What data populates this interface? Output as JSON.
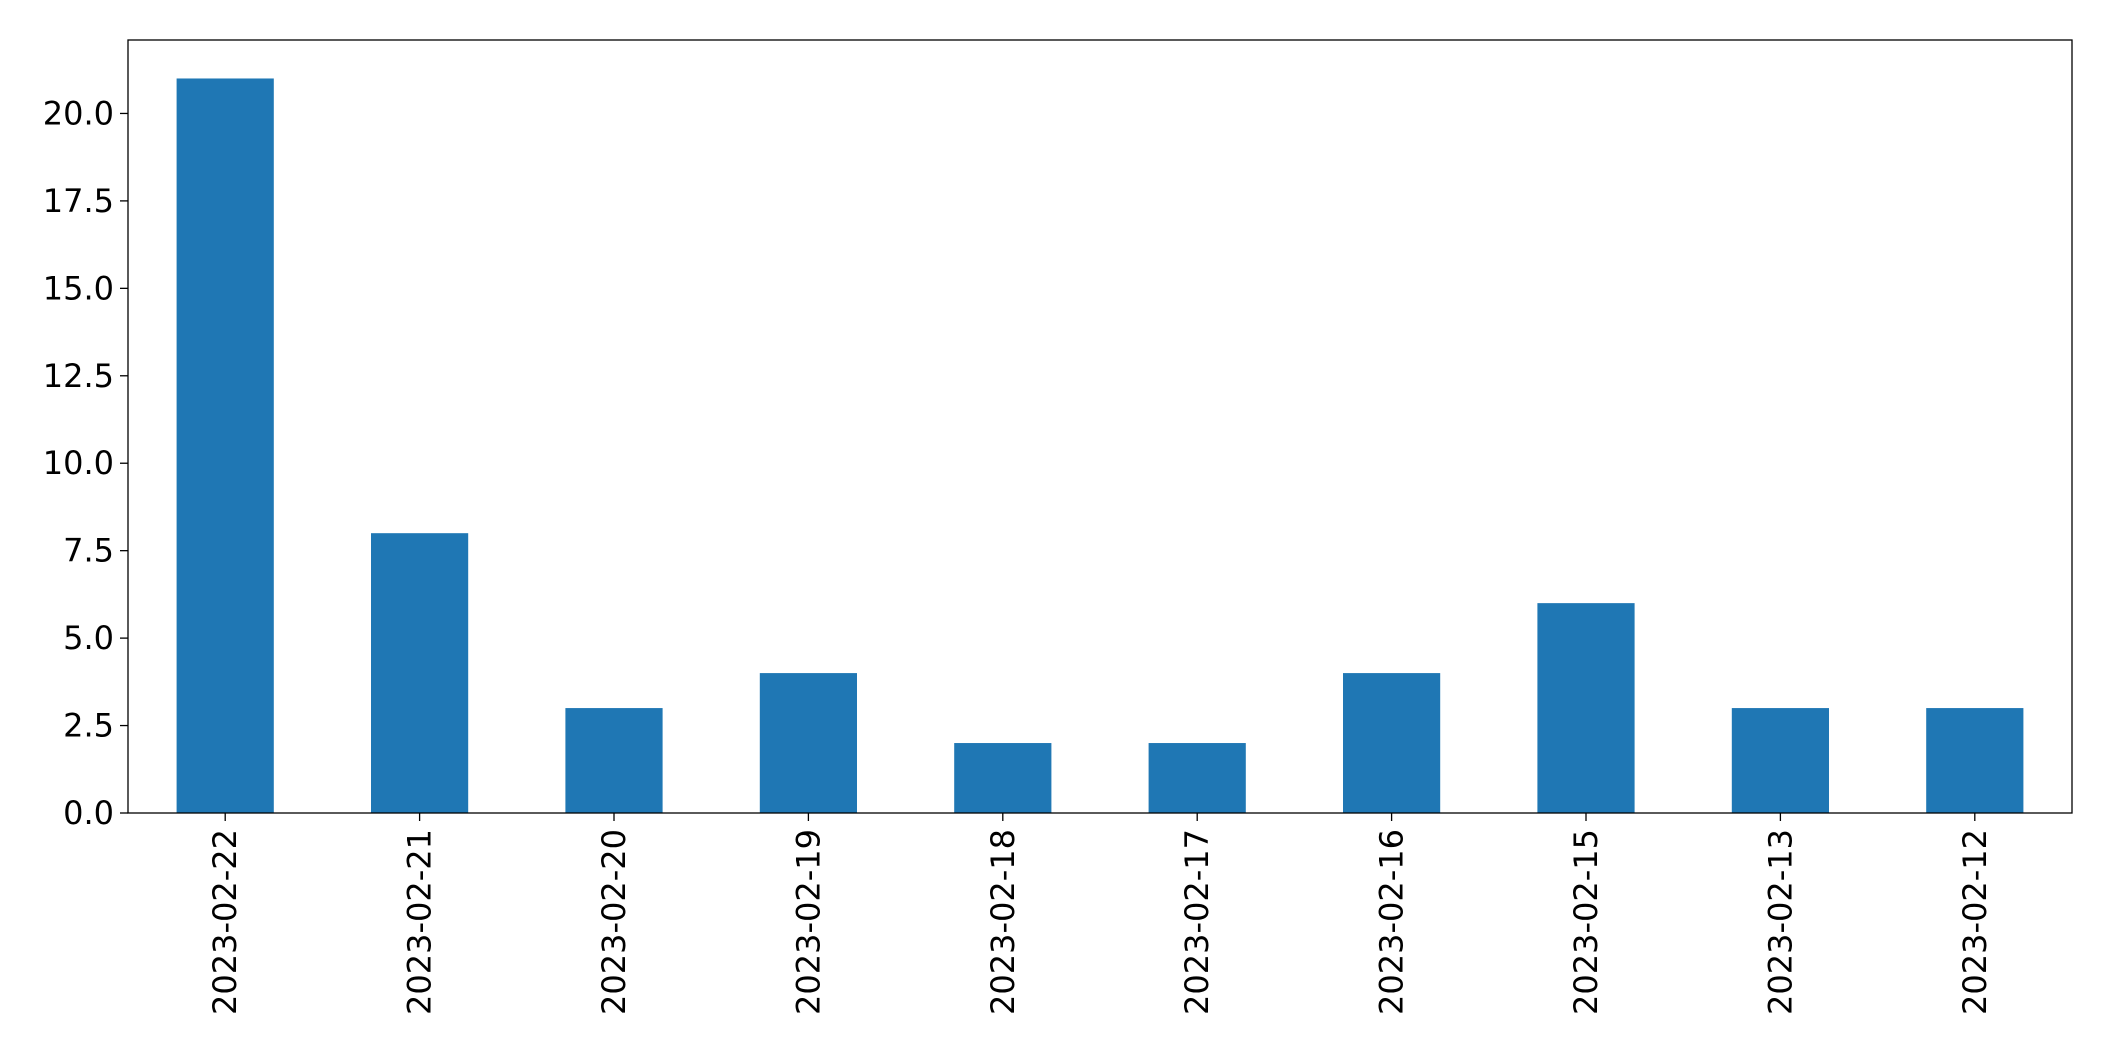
{
  "chart_data": {
    "type": "bar",
    "title": "",
    "xlabel": "",
    "ylabel": "",
    "categories": [
      "2023-02-22",
      "2023-02-21",
      "2023-02-20",
      "2023-02-19",
      "2023-02-18",
      "2023-02-17",
      "2023-02-16",
      "2023-02-15",
      "2023-02-13",
      "2023-02-12"
    ],
    "values": [
      21,
      8,
      3,
      4,
      2,
      2,
      4,
      6,
      3,
      3
    ],
    "ylim": [
      0,
      22.1
    ],
    "yticks": [
      0,
      2.5,
      5,
      7.5,
      10,
      12.5,
      15,
      17.5,
      20
    ],
    "ytick_labels": [
      "0.0",
      "2.5",
      "5.0",
      "7.5",
      "10.0",
      "12.5",
      "15.0",
      "17.5",
      "20.0"
    ],
    "bar_color": "#1f77b4",
    "grid": false,
    "legend": "none",
    "xtick_rotation": "vertical"
  }
}
